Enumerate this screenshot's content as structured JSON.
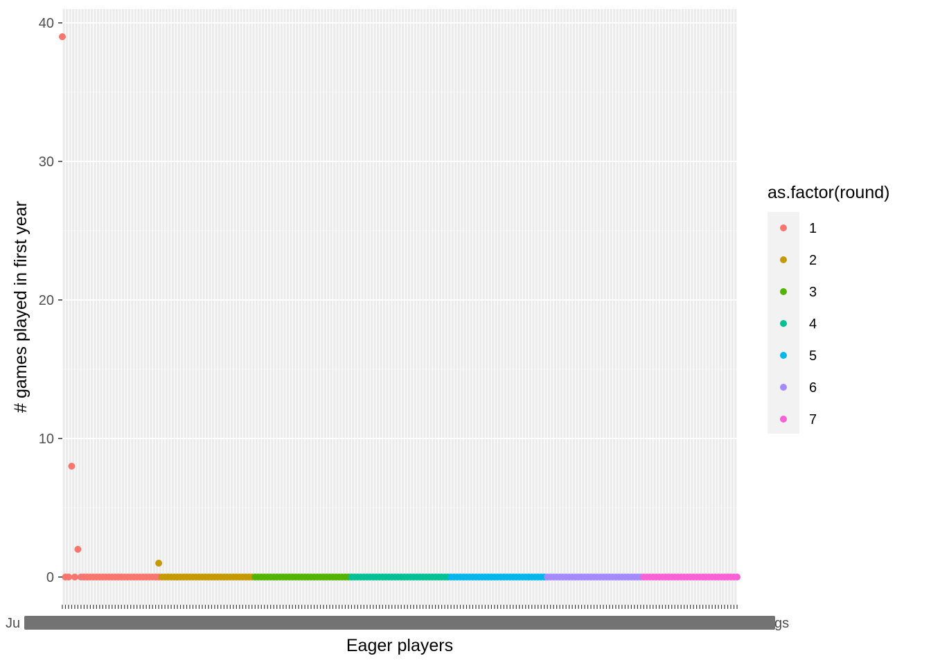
{
  "chart_data": {
    "type": "scatter",
    "xlabel": "Eager players",
    "ylabel": "# games played in first year",
    "ylim": [
      -2,
      41
    ],
    "yticks": [
      0,
      10,
      20,
      30,
      40
    ],
    "grid": true,
    "legend": {
      "title": "as.factor(round)",
      "position": "right",
      "entries": [
        {
          "label": "1",
          "color": "#F8766D"
        },
        {
          "label": "2",
          "color": "#C49A00"
        },
        {
          "label": "3",
          "color": "#53B400"
        },
        {
          "label": "4",
          "color": "#00C094"
        },
        {
          "label": "5",
          "color": "#00B6EB"
        },
        {
          "label": "6",
          "color": "#A58AFF"
        },
        {
          "label": "7",
          "color": "#FB61D7"
        }
      ]
    },
    "x_category_count": 218,
    "x_edge_labels": {
      "first": "Ju",
      "last": "gs"
    },
    "series": [
      {
        "name": "1",
        "first_index": 0,
        "count": 32,
        "values": [
          39,
          0,
          0,
          8,
          0,
          2,
          0,
          0,
          0,
          0,
          0,
          0,
          0,
          0,
          0,
          0,
          0,
          0,
          0,
          0,
          0,
          0,
          0,
          0,
          0,
          0,
          0,
          0,
          0,
          0,
          0,
          0
        ]
      },
      {
        "name": "2",
        "first_index": 31,
        "count": 31,
        "values": [
          1,
          0,
          0,
          0,
          0,
          0,
          0,
          0,
          0,
          0,
          0,
          0,
          0,
          0,
          0,
          0,
          0,
          0,
          0,
          0,
          0,
          0,
          0,
          0,
          0,
          0,
          0,
          0,
          0,
          0,
          0
        ]
      },
      {
        "name": "3",
        "first_index": 62,
        "count": 31,
        "values": "all 0"
      },
      {
        "name": "4",
        "first_index": 93,
        "count": 32,
        "values": "all 0"
      },
      {
        "name": "5",
        "first_index": 125,
        "count": 31,
        "values": "all 0"
      },
      {
        "name": "6",
        "first_index": 156,
        "count": 31,
        "values": "all 0"
      },
      {
        "name": "7",
        "first_index": 187,
        "count": 31,
        "values": "all 0"
      }
    ]
  }
}
